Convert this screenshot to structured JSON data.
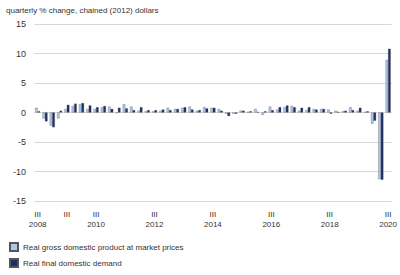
{
  "chart_data": {
    "type": "bar",
    "y_label": "quarterly % change, chained (2012) dollars",
    "categories": [
      "III\n2008",
      null,
      null,
      null,
      "III",
      null,
      null,
      null,
      "III\n2010",
      null,
      null,
      null,
      null,
      null,
      null,
      null,
      "III\n2012",
      null,
      null,
      null,
      null,
      null,
      null,
      null,
      "III\n2014",
      null,
      null,
      null,
      null,
      null,
      null,
      null,
      "III\n2016",
      null,
      null,
      null,
      null,
      null,
      null,
      null,
      "III\n2018",
      null,
      null,
      null,
      null,
      null,
      null,
      null,
      "III\n2020"
    ],
    "series": [
      {
        "name": "Real gross domestic product at market prices",
        "color": "#a9c9ea",
        "values": [
          0.8,
          -1.0,
          -2.2,
          -1.0,
          0.6,
          1.1,
          1.4,
          0.6,
          0.6,
          0.9,
          1.0,
          -0.1,
          1.4,
          1.0,
          0.3,
          0.2,
          0.2,
          0.3,
          0.8,
          0.6,
          0.8,
          1.0,
          0.3,
          0.9,
          0.8,
          0.6,
          -0.2,
          -0.2,
          0.3,
          0.1,
          0.6,
          -0.4,
          1.0,
          0.5,
          0.9,
          1.1,
          0.3,
          0.4,
          0.6,
          0.6,
          0.5,
          0.3,
          0.2,
          0.9,
          0.3,
          0.1,
          -1.9,
          -11.3,
          8.9
        ]
      },
      {
        "name": "Real final domestic demand",
        "color": "#1f2d6b",
        "values": [
          0.2,
          -1.5,
          -2.5,
          0.3,
          1.3,
          1.5,
          1.6,
          1.2,
          0.9,
          1.1,
          0.6,
          0.8,
          0.7,
          0.4,
          0.9,
          0.4,
          0.4,
          0.5,
          0.4,
          0.6,
          0.9,
          0.5,
          0.4,
          0.7,
          0.8,
          0.3,
          -0.6,
          -0.2,
          0.3,
          0.2,
          0.1,
          0.2,
          0.4,
          0.9,
          1.2,
          0.9,
          0.8,
          0.9,
          0.5,
          0.6,
          -0.2,
          0.1,
          0.3,
          0.4,
          0.8,
          0.2,
          -1.4,
          -11.4,
          10.8
        ]
      }
    ],
    "ylim": [
      -15,
      15
    ],
    "yticks": [
      -15,
      -10,
      -5,
      0,
      5,
      10,
      15
    ],
    "grid": true,
    "legend": "bottom-left"
  }
}
